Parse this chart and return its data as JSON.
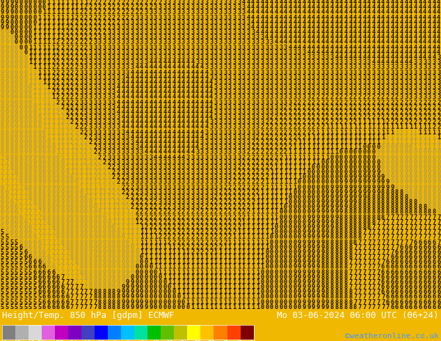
{
  "title_left": "Height/Temp. 850 hPa [gdpm] ECMWF",
  "title_right": "Mo 03-06-2024 06:00 UTC (06+24)",
  "credit": "©weatheronline.co.uk",
  "colorbar_ticks": [
    -54,
    -48,
    -42,
    -38,
    -30,
    -24,
    -18,
    -12,
    -6,
    0,
    6,
    12,
    18,
    24,
    30,
    36,
    42,
    48,
    54
  ],
  "colorbar_colors": [
    "#808080",
    "#b0b0b0",
    "#d8d8d8",
    "#e060e0",
    "#c000c0",
    "#8000c0",
    "#4040c0",
    "#0000ff",
    "#0080ff",
    "#00c0ff",
    "#00e0a0",
    "#00c000",
    "#60c000",
    "#c0c000",
    "#ffff00",
    "#ffc000",
    "#ff8000",
    "#ff4000",
    "#cc0000",
    "#800000"
  ],
  "bg_color": "#f0b800",
  "bottom_bar_color": "#000000",
  "figsize": [
    6.34,
    4.9
  ],
  "dpi": 100,
  "char_fontsize": 6.2,
  "char_color_dark": "#000000",
  "char_color_gray": "#888888",
  "rows": 62,
  "cols": 95
}
